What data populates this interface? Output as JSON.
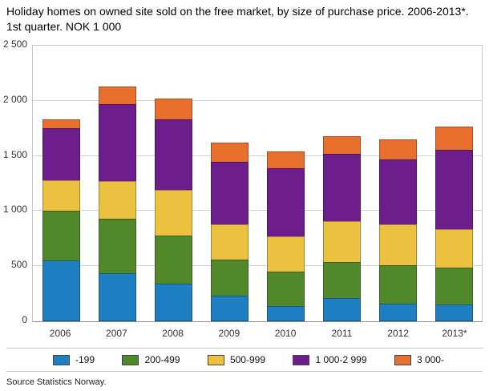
{
  "title": "Holiday homes on owned site sold on the free market, by size of purchase price. 2006-2013*. 1st quarter. NOK 1 000",
  "source": "Source Statistics Norway.",
  "chart_data": {
    "type": "bar",
    "stacked": true,
    "title": "Holiday homes on owned site sold on the free market, by size of purchase price. 2006-2013*. 1st quarter. NOK 1 000",
    "xlabel": "",
    "ylabel": "",
    "categories": [
      "2006",
      "2007",
      "2008",
      "2009",
      "2010",
      "2011",
      "2012",
      "2013*"
    ],
    "series": [
      {
        "name": "-199",
        "color": "#1e7fc2",
        "values": [
          550,
          440,
          340,
          230,
          140,
          210,
          160,
          155
        ]
      },
      {
        "name": "200-499",
        "color": "#51892a",
        "values": [
          450,
          490,
          440,
          330,
          310,
          330,
          350,
          330
        ]
      },
      {
        "name": "500-999",
        "color": "#ecc140",
        "values": [
          280,
          340,
          410,
          320,
          320,
          370,
          370,
          350
        ]
      },
      {
        "name": "1 000-2 999",
        "color": "#6e1e8c",
        "values": [
          470,
          700,
          640,
          570,
          620,
          610,
          590,
          720
        ]
      },
      {
        "name": "3 000-",
        "color": "#e8702c",
        "values": [
          80,
          160,
          190,
          170,
          150,
          160,
          180,
          210
        ]
      }
    ],
    "ylim": [
      0,
      2500
    ],
    "ytick_step": 500,
    "ytick_labels": [
      "0",
      "500",
      "1 000",
      "1 500",
      "2 000",
      "2 500"
    ],
    "grid": true,
    "legend_position": "bottom"
  }
}
